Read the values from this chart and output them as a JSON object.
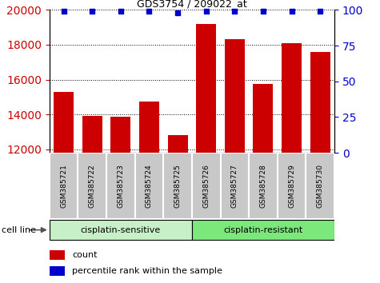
{
  "title": "GDS3754 / 209022_at",
  "samples": [
    "GSM385721",
    "GSM385722",
    "GSM385723",
    "GSM385724",
    "GSM385725",
    "GSM385726",
    "GSM385727",
    "GSM385728",
    "GSM385729",
    "GSM385730"
  ],
  "counts": [
    15300,
    13900,
    13850,
    14750,
    12800,
    19200,
    18300,
    15750,
    18100,
    17600
  ],
  "percentile_ranks": [
    99,
    99,
    99,
    99,
    98,
    99,
    99,
    99,
    99,
    99
  ],
  "bar_color": "#cc0000",
  "dot_color": "#0000cc",
  "ylim_left": [
    11800,
    20000
  ],
  "ylim_right": [
    0,
    100
  ],
  "yticks_left": [
    12000,
    14000,
    16000,
    18000,
    20000
  ],
  "yticks_right": [
    0,
    25,
    50,
    75,
    100
  ],
  "groups": [
    {
      "label": "cisplatin-sensitive",
      "start": 0,
      "end": 5,
      "color": "#c8f0c8"
    },
    {
      "label": "cisplatin-resistant",
      "start": 5,
      "end": 10,
      "color": "#7ce87c"
    }
  ],
  "group_label": "cell line",
  "legend_count_label": "count",
  "legend_pct_label": "percentile rank within the sample",
  "tick_label_color_left": "#cc0000",
  "tick_label_color_right": "#0000cc",
  "background_color": "#ffffff",
  "xtick_bg_color": "#c8c8c8",
  "xtick_border_color": "#ffffff"
}
